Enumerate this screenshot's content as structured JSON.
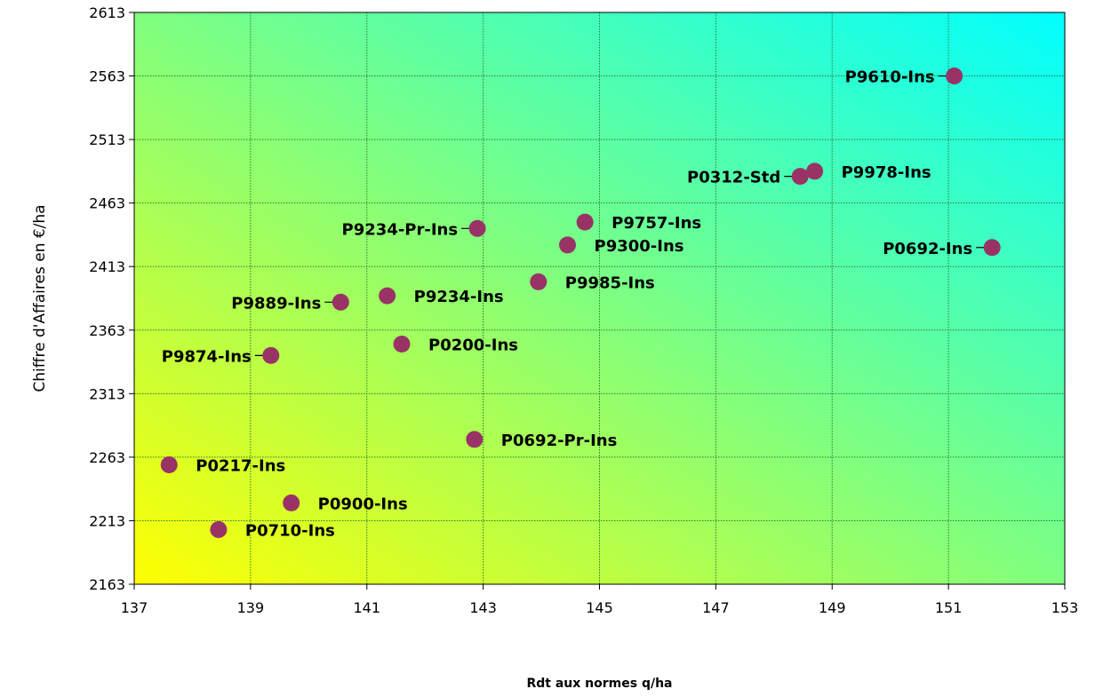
{
  "chart_data": {
    "type": "scatter",
    "title": "",
    "xlabel": "Rdt aux normes q/ha",
    "ylabel": "Chiffre d'Affaires en €/ha",
    "xlim": [
      137,
      153
    ],
    "ylim": [
      2163,
      2613
    ],
    "x_ticks": [
      "137",
      "139",
      "141",
      "143",
      "145",
      "147",
      "149",
      "151",
      "153"
    ],
    "y_ticks": [
      "2163",
      "2213",
      "2263",
      "2313",
      "2363",
      "2413",
      "2463",
      "2513",
      "2563",
      "2613"
    ],
    "grid": true,
    "legend": "none",
    "background_gradient": [
      "#ffff00",
      "#00ffff"
    ],
    "marker_color": "#993366",
    "points": [
      {
        "label": "P9610-Ins",
        "x": 151.1,
        "y": 2563,
        "label_side": "left",
        "leader": true
      },
      {
        "label": "P9978-Ins",
        "x": 148.7,
        "y": 2488,
        "label_side": "right",
        "leader": false
      },
      {
        "label": "P0312-Std",
        "x": 148.45,
        "y": 2484,
        "label_side": "left",
        "leader": true
      },
      {
        "label": "P9757-Ins",
        "x": 144.75,
        "y": 2448,
        "label_side": "right",
        "leader": false
      },
      {
        "label": "P9234-Pr-Ins",
        "x": 142.9,
        "y": 2443,
        "label_side": "left",
        "leader": true
      },
      {
        "label": "P9300-Ins",
        "x": 144.45,
        "y": 2430,
        "label_side": "right",
        "leader": false
      },
      {
        "label": "P0692-Ins",
        "x": 151.75,
        "y": 2428,
        "label_side": "left",
        "leader": true
      },
      {
        "label": "P9985-Ins",
        "x": 143.95,
        "y": 2401,
        "label_side": "right",
        "leader": false
      },
      {
        "label": "P9234-Ins",
        "x": 141.35,
        "y": 2390,
        "label_side": "right",
        "leader": false
      },
      {
        "label": "P9889-Ins",
        "x": 140.55,
        "y": 2385,
        "label_side": "left",
        "leader": true
      },
      {
        "label": "P0200-Ins",
        "x": 141.6,
        "y": 2352,
        "label_side": "right",
        "leader": false
      },
      {
        "label": "P9874-Ins",
        "x": 139.35,
        "y": 2343,
        "label_side": "left",
        "leader": true
      },
      {
        "label": "P0692-Pr-Ins",
        "x": 142.85,
        "y": 2277,
        "label_side": "right",
        "leader": false
      },
      {
        "label": "P0217-Ins",
        "x": 137.6,
        "y": 2257,
        "label_side": "right",
        "leader": false
      },
      {
        "label": "P0900-Ins",
        "x": 139.7,
        "y": 2227,
        "label_side": "right",
        "leader": false
      },
      {
        "label": "P0710-Ins",
        "x": 138.45,
        "y": 2206,
        "label_side": "right",
        "leader": false
      }
    ]
  }
}
